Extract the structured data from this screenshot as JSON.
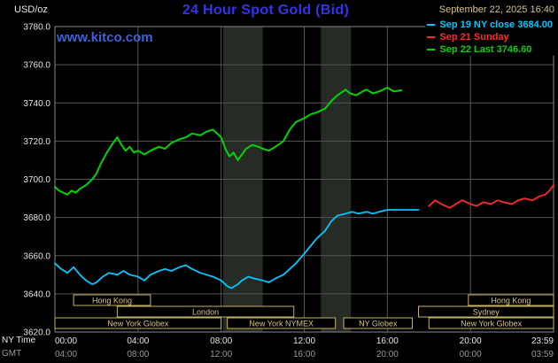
{
  "header": {
    "unit_label": "USD/oz",
    "title": "24 Hour Spot Gold (Bid)",
    "datetime": "September 22, 2025 16:40",
    "watermark": "www.kitco.com"
  },
  "legend": [
    {
      "label": "Sep 19 NY close 3684.00",
      "color": "#00c8ff"
    },
    {
      "label": "Sep 21 Sunday",
      "color": "#ff2a2a"
    },
    {
      "label": "Sep 22 Last 3746.60",
      "color": "#00d400"
    }
  ],
  "axis": {
    "ny_label": "NY Time",
    "gmt_label": "GMT"
  },
  "colors": {
    "background": "#000000",
    "grid": "#565656",
    "border": "#888888",
    "band": "#262b25",
    "axis_text": "#e6e6e6",
    "ny_time_text": "#e6e6e6",
    "gmt_text": "#999999",
    "session_border": "#c8b560",
    "session_fill": "#000000",
    "session_text": "#d8c583",
    "title": "#3333ee",
    "date_text": "#d2c48c",
    "watermark": "#3b62d9"
  },
  "chart_data": {
    "type": "line",
    "title": "24 Hour Spot Gold (Bid)",
    "ylabel": "USD/oz",
    "ylim": [
      3620,
      3780
    ],
    "ytick_step": 20,
    "xlim_hours": [
      0,
      24
    ],
    "grid": true,
    "legend_position": "top-right",
    "x_ticks": [
      {
        "h": 0,
        "ny": "00:00",
        "gmt": "04:00"
      },
      {
        "h": 4,
        "ny": "04:00",
        "gmt": "08:00"
      },
      {
        "h": 8,
        "ny": "08:00",
        "gmt": "12:00"
      },
      {
        "h": 12,
        "ny": "12:00",
        "gmt": "16:00"
      },
      {
        "h": 16,
        "ny": "16:00",
        "gmt": "20:00"
      },
      {
        "h": 20,
        "ny": "20:00",
        "gmt": "00:00"
      },
      {
        "h": 24,
        "ny": "23:59",
        "gmt": "03:59"
      }
    ],
    "series": [
      {
        "name": "Sep 19 NY close",
        "close_value": 3684.0,
        "color": "#00c8ff",
        "width": 1.8,
        "points": [
          [
            0,
            3656
          ],
          [
            0.3,
            3653
          ],
          [
            0.6,
            3651
          ],
          [
            0.9,
            3654
          ],
          [
            1.2,
            3650
          ],
          [
            1.5,
            3647
          ],
          [
            1.8,
            3645
          ],
          [
            2,
            3646
          ],
          [
            2.3,
            3649
          ],
          [
            2.6,
            3651
          ],
          [
            3,
            3650
          ],
          [
            3.3,
            3652
          ],
          [
            3.6,
            3650
          ],
          [
            4,
            3649
          ],
          [
            4.3,
            3647
          ],
          [
            4.6,
            3650
          ],
          [
            5,
            3652
          ],
          [
            5.3,
            3653
          ],
          [
            5.6,
            3652
          ],
          [
            6,
            3654
          ],
          [
            6.3,
            3655
          ],
          [
            6.6,
            3653
          ],
          [
            7,
            3651
          ],
          [
            7.3,
            3650
          ],
          [
            7.6,
            3649
          ],
          [
            8,
            3647
          ],
          [
            8.3,
            3644
          ],
          [
            8.5,
            3643
          ],
          [
            8.8,
            3645
          ],
          [
            9,
            3647
          ],
          [
            9.3,
            3649
          ],
          [
            9.6,
            3648
          ],
          [
            10,
            3647
          ],
          [
            10.3,
            3646
          ],
          [
            10.6,
            3648
          ],
          [
            11,
            3650
          ],
          [
            11.3,
            3653
          ],
          [
            11.6,
            3656
          ],
          [
            12,
            3661
          ],
          [
            12.3,
            3665
          ],
          [
            12.6,
            3669
          ],
          [
            13,
            3673
          ],
          [
            13.3,
            3678
          ],
          [
            13.6,
            3681
          ],
          [
            14,
            3682
          ],
          [
            14.3,
            3683
          ],
          [
            14.6,
            3682
          ],
          [
            15,
            3683
          ],
          [
            15.3,
            3682
          ],
          [
            15.6,
            3683
          ],
          [
            16,
            3684
          ],
          [
            16.5,
            3684
          ],
          [
            17,
            3684
          ],
          [
            17.5,
            3684
          ]
        ]
      },
      {
        "name": "Sep 21 Sunday",
        "color": "#ff2a2a",
        "width": 1.8,
        "points": [
          [
            18,
            3686
          ],
          [
            18.3,
            3689
          ],
          [
            18.6,
            3687
          ],
          [
            19,
            3685
          ],
          [
            19.3,
            3687
          ],
          [
            19.6,
            3689
          ],
          [
            20,
            3687
          ],
          [
            20.3,
            3686
          ],
          [
            20.6,
            3688
          ],
          [
            21,
            3687
          ],
          [
            21.3,
            3689
          ],
          [
            21.6,
            3688
          ],
          [
            22,
            3687
          ],
          [
            22.3,
            3689
          ],
          [
            22.6,
            3690
          ],
          [
            23,
            3689
          ],
          [
            23.3,
            3691
          ],
          [
            23.6,
            3692
          ],
          [
            23.8,
            3694
          ],
          [
            24,
            3697
          ]
        ]
      },
      {
        "name": "Sep 22 Last",
        "last_value": 3746.6,
        "color": "#00d400",
        "width": 2,
        "points": [
          [
            0,
            3696
          ],
          [
            0.2,
            3694
          ],
          [
            0.4,
            3693
          ],
          [
            0.6,
            3692
          ],
          [
            0.8,
            3694
          ],
          [
            1,
            3693
          ],
          [
            1.2,
            3695
          ],
          [
            1.5,
            3697
          ],
          [
            1.8,
            3700
          ],
          [
            2,
            3703
          ],
          [
            2.2,
            3708
          ],
          [
            2.5,
            3714
          ],
          [
            2.8,
            3719
          ],
          [
            3,
            3722
          ],
          [
            3.2,
            3718
          ],
          [
            3.4,
            3715
          ],
          [
            3.6,
            3717
          ],
          [
            3.8,
            3714
          ],
          [
            4,
            3715
          ],
          [
            4.3,
            3713
          ],
          [
            4.6,
            3715
          ],
          [
            5,
            3717
          ],
          [
            5.3,
            3716
          ],
          [
            5.6,
            3719
          ],
          [
            6,
            3721
          ],
          [
            6.3,
            3722
          ],
          [
            6.6,
            3724
          ],
          [
            7,
            3723
          ],
          [
            7.3,
            3725
          ],
          [
            7.6,
            3726
          ],
          [
            8,
            3722
          ],
          [
            8.2,
            3716
          ],
          [
            8.4,
            3712
          ],
          [
            8.6,
            3714
          ],
          [
            8.8,
            3710
          ],
          [
            9,
            3713
          ],
          [
            9.2,
            3716
          ],
          [
            9.5,
            3718
          ],
          [
            9.8,
            3717
          ],
          [
            10,
            3716
          ],
          [
            10.3,
            3715
          ],
          [
            10.6,
            3717
          ],
          [
            11,
            3720
          ],
          [
            11.3,
            3726
          ],
          [
            11.6,
            3730
          ],
          [
            12,
            3732
          ],
          [
            12.3,
            3734
          ],
          [
            12.6,
            3735
          ],
          [
            13,
            3737
          ],
          [
            13.3,
            3741
          ],
          [
            13.6,
            3744
          ],
          [
            14,
            3747
          ],
          [
            14.2,
            3745
          ],
          [
            14.5,
            3744
          ],
          [
            14.8,
            3746
          ],
          [
            15,
            3747
          ],
          [
            15.3,
            3745
          ],
          [
            15.6,
            3746
          ],
          [
            16,
            3748
          ],
          [
            16.3,
            3746
          ],
          [
            16.67,
            3746.6
          ]
        ]
      }
    ],
    "shaded_bands_hours": [
      [
        8.1,
        10.0
      ],
      [
        12.8,
        14.25
      ]
    ],
    "sessions": [
      {
        "row": 0,
        "label": "Hong Kong",
        "start_h": 0.9,
        "end_h": 4.6
      },
      {
        "row": 0,
        "label": "Hong Kong",
        "start_h": 19.9,
        "end_h": 24
      },
      {
        "row": 1,
        "label": "London",
        "start_h": 3.0,
        "end_h": 11.5
      },
      {
        "row": 1,
        "label": "Sydney",
        "start_h": 17.5,
        "end_h": 24
      },
      {
        "row": 2,
        "label": "New York Globex",
        "start_h": 0,
        "end_h": 8.0
      },
      {
        "row": 2,
        "label": "New York NYMEX",
        "start_h": 8.3,
        "end_h": 13.5
      },
      {
        "row": 2,
        "label": "NY Globex",
        "start_h": 13.9,
        "end_h": 17.2
      },
      {
        "row": 2,
        "label": "New York Globex",
        "start_h": 18.0,
        "end_h": 24
      }
    ]
  }
}
